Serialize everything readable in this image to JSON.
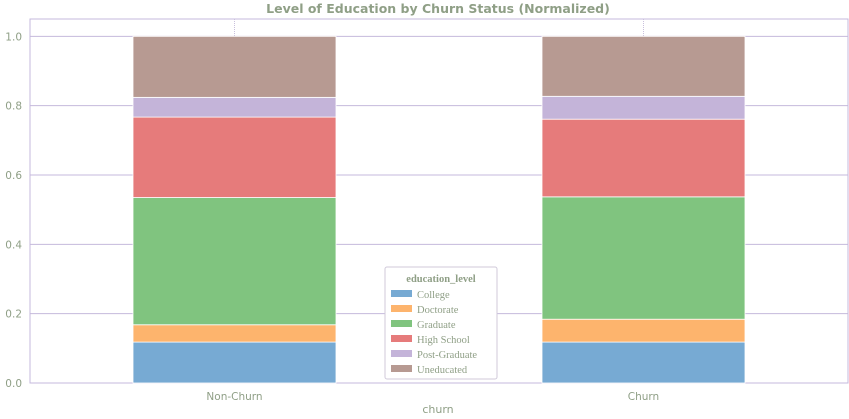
{
  "chart_data": {
    "type": "bar",
    "stacked": true,
    "title": "Level of Education by Churn Status (Normalized)",
    "xlabel": "churn",
    "ylabel": "",
    "categories": [
      "Non-Churn",
      "Churn"
    ],
    "ylim": [
      0,
      1.05
    ],
    "yticks": [
      "0.0",
      "0.2",
      "0.4",
      "0.6",
      "0.8",
      "1.0"
    ],
    "grid": true,
    "legend": {
      "title": "education_level",
      "placement": "lower-center"
    },
    "series": [
      {
        "name": "College",
        "color": "#77aad3",
        "values": [
          0.118,
          0.118
        ]
      },
      {
        "name": "Doctorate",
        "color": "#fdb46d",
        "values": [
          0.05,
          0.066
        ]
      },
      {
        "name": "Graduate",
        "color": "#80c47f",
        "values": [
          0.367,
          0.353
        ]
      },
      {
        "name": "High School",
        "color": "#e67b7b",
        "values": [
          0.232,
          0.224
        ]
      },
      {
        "name": "Post-Graduate",
        "color": "#c4b4d9",
        "values": [
          0.057,
          0.066
        ]
      },
      {
        "name": "Uneducated",
        "color": "#b79a92",
        "values": [
          0.176,
          0.173
        ]
      }
    ]
  }
}
